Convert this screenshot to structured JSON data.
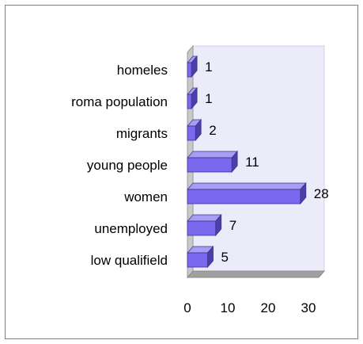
{
  "chart_data": {
    "type": "bar",
    "orientation": "horizontal",
    "three_d": true,
    "categories": [
      "low qualifield",
      "unemployed",
      "women",
      "young people",
      "migrants",
      "roma population",
      "homeles"
    ],
    "values": [
      5,
      7,
      28,
      11,
      2,
      1,
      1
    ],
    "xlim": [
      0,
      30
    ],
    "x_ticks": [
      "0",
      "10",
      "20",
      "30"
    ],
    "title": "",
    "xlabel": "",
    "ylabel": "",
    "legend": "none",
    "grid": false,
    "data_labels": true
  },
  "colors": {
    "bar_front": "#7b68ee",
    "bar_top": "#a89cf5",
    "bar_side": "#4b3fa8",
    "bar_stroke": "#3c3290",
    "back_wall": "#ebebfa",
    "side_wall": "#c8c8c8",
    "floor": "#a0a0a0",
    "frame_border": "#7f7f7f"
  }
}
